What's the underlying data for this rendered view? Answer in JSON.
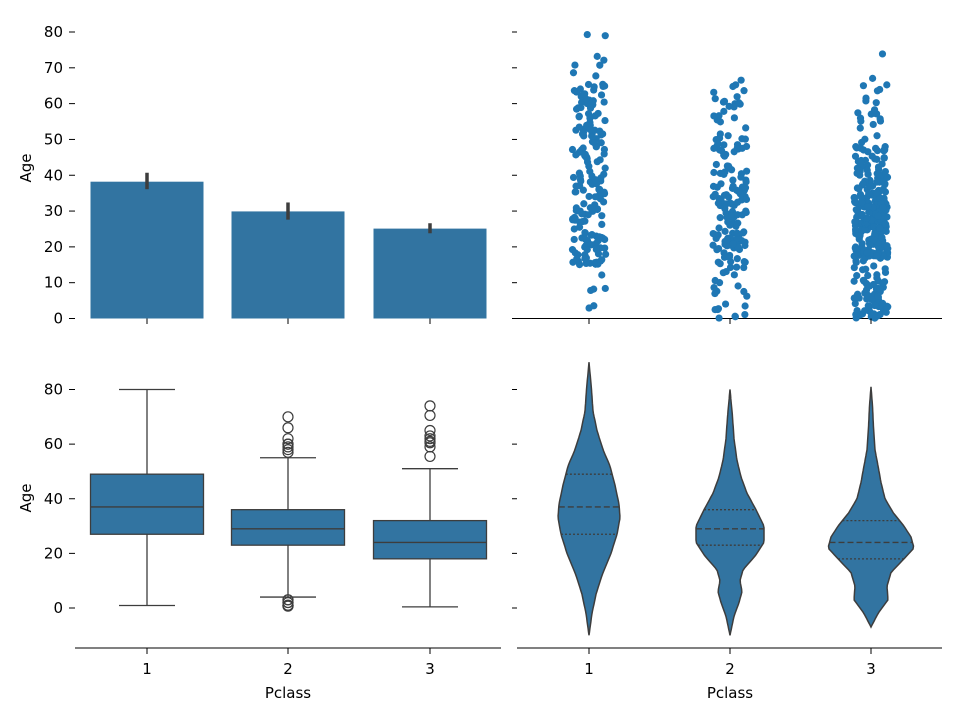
{
  "figure": {
    "xlabel": "Pclass",
    "ylabel": "Age"
  },
  "colors": {
    "fill": "#3274a1",
    "point": "#1f77b4",
    "line": "#3d3d3d",
    "axis": "#000000"
  },
  "chart_data": [
    {
      "type": "bar",
      "categories": [
        "1",
        "2",
        "3"
      ],
      "values": [
        38.2,
        29.9,
        25.1
      ],
      "ci": [
        [
          36.1,
          40.7
        ],
        [
          27.6,
          32.4
        ],
        [
          23.8,
          26.6
        ]
      ],
      "ylabel": "Age",
      "ylim": [
        0,
        80
      ],
      "yticks": [
        "0",
        "10",
        "20",
        "30",
        "40",
        "50",
        "60",
        "70",
        "80"
      ]
    },
    {
      "type": "scatter",
      "subtype": "strip",
      "categories": [
        "1",
        "2",
        "3"
      ],
      "point_count": [
        186,
        173,
        355
      ],
      "ylim": [
        0,
        80
      ],
      "shared_y": true
    },
    {
      "type": "box",
      "categories": [
        "1",
        "2",
        "3"
      ],
      "boxes": [
        {
          "q1": 27,
          "median": 37,
          "q3": 49,
          "whisker_low": 0.92,
          "whisker_high": 80,
          "outliers": []
        },
        {
          "q1": 23,
          "median": 29,
          "q3": 36,
          "whisker_low": 4,
          "whisker_high": 55,
          "outliers": [
            0.67,
            0.83,
            0.83,
            1,
            1,
            2,
            2,
            3,
            3,
            57,
            58,
            59,
            60,
            60,
            62,
            66,
            70
          ]
        },
        {
          "q1": 18,
          "median": 24,
          "q3": 32,
          "whisker_low": 0.42,
          "whisker_high": 51,
          "outliers": [
            55.5,
            59,
            60.5,
            61,
            62,
            63,
            65,
            70.5,
            74
          ]
        }
      ],
      "xlabel": "Pclass",
      "ylabel": "Age",
      "ylim": [
        -15,
        90
      ],
      "yticks": [
        "0",
        "20",
        "40",
        "60",
        "80"
      ]
    },
    {
      "type": "violin",
      "categories": [
        "1",
        "2",
        "3"
      ],
      "range": [
        [
          -10,
          90
        ],
        [
          -10,
          80
        ],
        [
          -7,
          81
        ]
      ],
      "quartiles": [
        [
          27,
          37,
          49
        ],
        [
          23,
          29,
          36
        ],
        [
          18,
          24,
          32
        ]
      ],
      "xlabel": "Pclass",
      "shared_y": true
    }
  ]
}
